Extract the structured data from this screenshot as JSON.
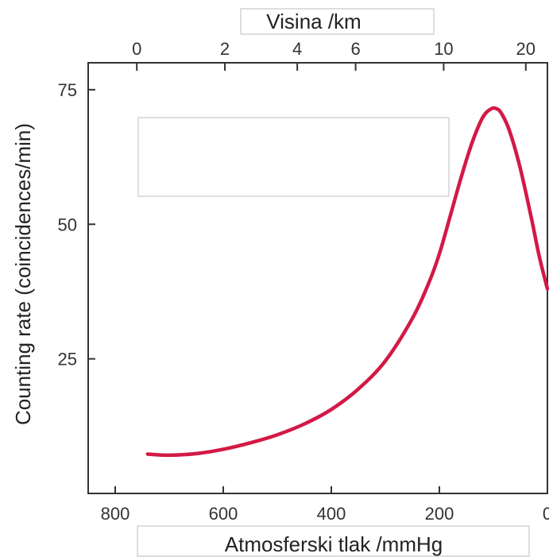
{
  "chart_data": {
    "type": "line",
    "xlabel": "Atmosferski tlak /mmHg",
    "x2label": "Visina /km",
    "ylabel": "Counting rate (coincidences/min)",
    "xlim": [
      850,
      0
    ],
    "ylim": [
      0,
      80
    ],
    "x_reversed": true,
    "grid": false,
    "x_ticks": [
      800,
      600,
      400,
      200,
      0
    ],
    "x_tick_labels": [
      "800",
      "600",
      "400",
      "200",
      "0"
    ],
    "y_ticks": [
      25,
      50,
      75
    ],
    "y_tick_labels": [
      "25",
      "50",
      "75"
    ],
    "x2_ticks": [
      {
        "label": "0",
        "pressure": 760
      },
      {
        "label": "2",
        "pressure": 597
      },
      {
        "label": "4",
        "pressure": 463
      },
      {
        "label": "6",
        "pressure": 355
      },
      {
        "label": "10",
        "pressure": 192
      },
      {
        "label": "20",
        "pressure": 40
      }
    ],
    "series": [
      {
        "color": "#d31945",
        "x": [
          740,
          700,
          650,
          600,
          550,
          500,
          450,
          400,
          350,
          300,
          250,
          220,
          200,
          180,
          160,
          140,
          120,
          105,
          95,
          85,
          70,
          50,
          30,
          15,
          0
        ],
        "y": [
          7.3,
          7.1,
          7.4,
          8.2,
          9.4,
          10.9,
          12.9,
          15.6,
          19.4,
          24.6,
          32.5,
          39.0,
          44.5,
          51.5,
          58.6,
          65.0,
          69.8,
          71.4,
          71.5,
          70.6,
          67.3,
          60.3,
          51.3,
          44.0,
          38.0
        ]
      }
    ]
  }
}
